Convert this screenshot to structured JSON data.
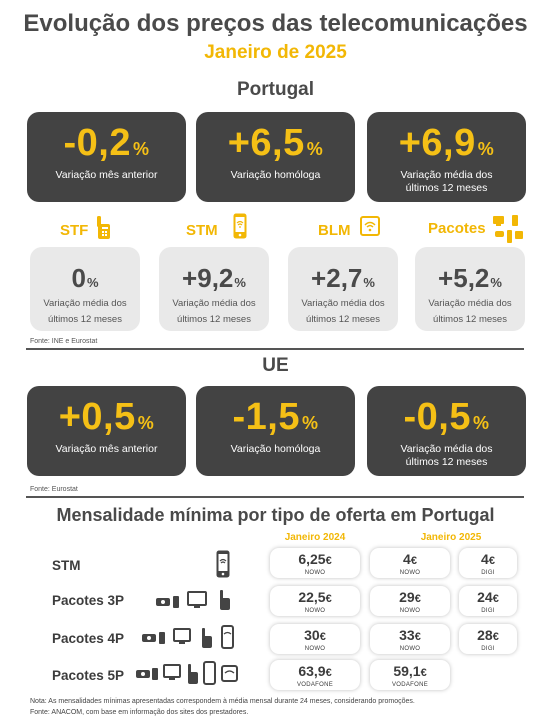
{
  "title": "Evolução dos preços das telecomunicações",
  "subtitle": "Janeiro de 2025",
  "portugal": {
    "heading": "Portugal",
    "cards": [
      {
        "value": "-0,2",
        "unit": "%",
        "label1": "Variação mês anterior",
        "label2": ""
      },
      {
        "value": "+6,5",
        "unit": "%",
        "label1": "Variação homóloga",
        "label2": ""
      },
      {
        "value": "+6,9",
        "unit": "%",
        "label1": "Variação média dos",
        "label2": "últimos 12 meses"
      }
    ],
    "services": [
      {
        "name": "STF",
        "icon": "landline-phone-icon",
        "value": "0",
        "unit": "%",
        "label1": "Variação média dos",
        "label2": "últimos 12 meses"
      },
      {
        "name": "STM",
        "icon": "mobile-phone-icon",
        "value": "+9,2",
        "unit": "%",
        "label1": "Variação média dos",
        "label2": "últimos 12 meses"
      },
      {
        "name": "BLM",
        "icon": "tablet-wifi-icon",
        "value": "+2,7",
        "unit": "%",
        "label1": "Variação média dos",
        "label2": "últimos 12 meses"
      },
      {
        "name": "Pacotes",
        "icon": "bundle-devices-icon",
        "value": "+5,2",
        "unit": "%",
        "label1": "Variação média dos",
        "label2": "últimos 12 meses"
      }
    ],
    "source": "Fonte: INE e Eurostat"
  },
  "ue": {
    "heading": "UE",
    "cards": [
      {
        "value": "+0,5",
        "unit": "%",
        "label1": "Variação mês anterior",
        "label2": ""
      },
      {
        "value": "-1,5",
        "unit": "%",
        "label1": "Variação homóloga",
        "label2": ""
      },
      {
        "value": "-0,5",
        "unit": "%",
        "label1": "Variação média dos",
        "label2": "últimos 12 meses"
      }
    ],
    "source": "Fonte: Eurostat"
  },
  "minimum": {
    "heading": "Mensalidade mínima por tipo de oferta em Portugal",
    "col_2024": "Janeiro 2024",
    "col_2025": "Janeiro 2025",
    "rows": [
      {
        "label": "STM",
        "p2024": {
          "value": "6,25",
          "unit": "€",
          "op": "NOWO"
        },
        "p2025a": {
          "value": "4",
          "unit": "€",
          "op": "NOWO"
        },
        "p2025b": {
          "value": "4",
          "unit": "€",
          "op": "DIGI"
        }
      },
      {
        "label": "Pacotes 3P",
        "p2024": {
          "value": "22,5",
          "unit": "€",
          "op": "NOWO"
        },
        "p2025a": {
          "value": "29",
          "unit": "€",
          "op": "NOWO"
        },
        "p2025b": {
          "value": "24",
          "unit": "€",
          "op": "DIGI"
        }
      },
      {
        "label": "Pacotes 4P",
        "p2024": {
          "value": "30",
          "unit": "€",
          "op": "NOWO"
        },
        "p2025a": {
          "value": "33",
          "unit": "€",
          "op": "NOWO"
        },
        "p2025b": {
          "value": "28",
          "unit": "€",
          "op": "DIGI"
        }
      },
      {
        "label": "Pacotes 5P",
        "p2024": {
          "value": "63,9",
          "unit": "€",
          "op": "VODAFONE"
        },
        "p2025a": {
          "value": "59,1",
          "unit": "€",
          "op": "VODAFONE"
        }
      }
    ],
    "note": "Nota: As mensalidades mínimas apresentadas correspondem à média mensal durante 24 meses, considerando promoções.",
    "source": "Fonte: ANACOM, com base em informação dos sites dos prestadores."
  },
  "colors": {
    "accent": "#f2b705",
    "dark_card": "#434343",
    "light_card": "#e9e9e9"
  }
}
